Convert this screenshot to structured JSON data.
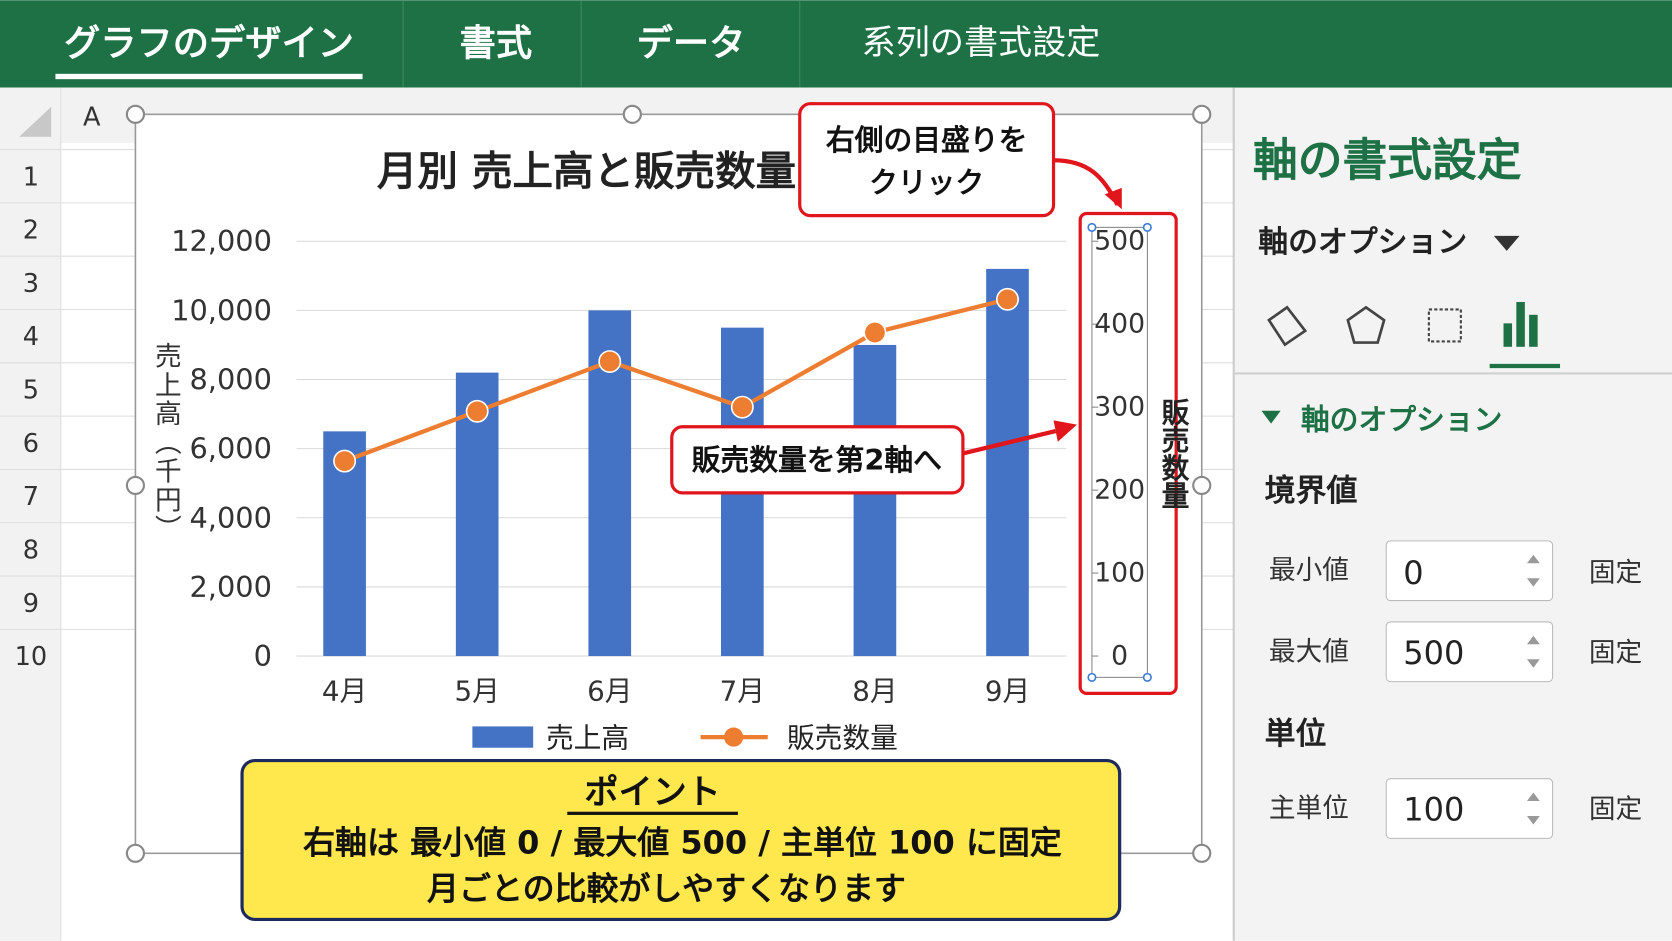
{
  "ribbon": {
    "tabs": [
      "グラフのデザイン",
      "書式",
      "データ",
      "系列の書式設定"
    ]
  },
  "sheet": {
    "column": "A",
    "rows": [
      "1",
      "2",
      "3",
      "4",
      "5",
      "6",
      "7",
      "8",
      "9",
      "10"
    ]
  },
  "chart_data": {
    "type": "bar",
    "title": "月別 売上高と販売数量",
    "y_label": "売上高（千円）",
    "y2_label": "販売数量",
    "categories": [
      "4月",
      "5月",
      "6月",
      "7月",
      "8月",
      "9月"
    ],
    "series": [
      {
        "name": "売上高",
        "type": "bar",
        "color": "#4472c4",
        "values": [
          6500,
          8200,
          10000,
          9500,
          9000,
          11200
        ]
      },
      {
        "name": "販売数量",
        "type": "line",
        "color": "#ed7d31",
        "axis": "y2",
        "values": [
          235,
          295,
          355,
          300,
          390,
          430
        ]
      }
    ],
    "ylim": [
      0,
      12000
    ],
    "yticks": [
      0,
      {
        "value": 2000,
        "label": "2,000"
      },
      {
        "value": 4000,
        "label": "4,000"
      },
      {
        "value": 6000,
        "label": "6,000"
      },
      {
        "value": 8000,
        "label": "8,000"
      },
      {
        "value": 10000,
        "label": "10,000"
      },
      {
        "value": 12000,
        "label": "12,000"
      }
    ],
    "y2lim": [
      0,
      500
    ],
    "y2ticks": [
      0,
      100,
      200,
      300,
      400,
      500
    ],
    "grid": true,
    "legend": "bottom"
  },
  "callouts": [
    {
      "lines": [
        "右側の目盛りを",
        "クリック"
      ]
    },
    {
      "lines": [
        "販売数量を第2軸へ"
      ]
    }
  ],
  "point_box": {
    "title": "ポイント",
    "lines": [
      "右軸は 最小値 0 / 最大値 500 / 主単位 100 に固定",
      "月ごとの比較がしやすくなります"
    ]
  },
  "panel": {
    "title": "軸の書式設定",
    "dropdown": "軸のオプション",
    "section": "軸のオプション",
    "bounds": {
      "heading": "境界値",
      "min_label": "最小値",
      "min": 0,
      "max_label": "最大値",
      "max": 500,
      "fixed": "固定"
    },
    "units": {
      "heading": "単位",
      "major_label": "主単位",
      "major": 100,
      "fixed": "固定"
    }
  }
}
